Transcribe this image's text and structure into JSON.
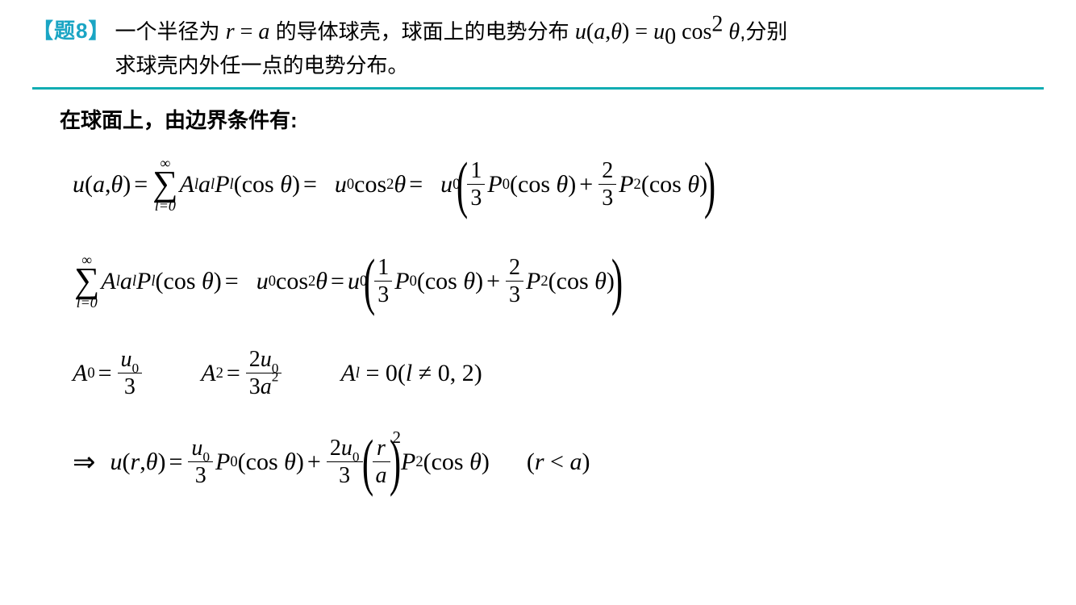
{
  "header": {
    "label": "【题8】",
    "line1_a": "一个半径为 ",
    "line1_r": "r",
    "line1_eq": " = ",
    "line1_a2": "a",
    "line1_b": " 的导体球壳，球面上的电势分布 ",
    "line1_u": "u",
    "line1_args": "(a,θ)",
    "line1_eq2": " = ",
    "line1_u0": "u",
    "line1_sub0": "0",
    "line1_cos": " cos",
    "line1_sup2": "2",
    "line1_theta": " θ",
    "line1_c": ",分别",
    "line2": "求球壳内外任一点的电势分布。"
  },
  "colors": {
    "label": "#1aa5c4",
    "rule": "#11adb2",
    "text": "#000000",
    "bg": "#ffffff"
  },
  "body": {
    "intro": "在球面上，由边界条件有:"
  },
  "eq1": {
    "lhs_u": "u",
    "lhs_args": "(a,θ)",
    "sum_top": "∞",
    "sum_bot": "l=0",
    "A": "A",
    "sub_l": "l",
    "a": "a",
    "sup_l": "l",
    "P": "P",
    "cos": "(cos θ)",
    "u0": "u",
    "zero": "0",
    "cos2": "cos",
    "two": "2",
    "theta": "θ",
    "f1n": "1",
    "f1d": "3",
    "P0": "P",
    "z0": "0",
    "f2n": "2",
    "f2d": "3",
    "P2": "P",
    "z2": "2"
  },
  "eq3": {
    "A0": "A",
    "z": "0",
    "eq": "=",
    "u": "u",
    "three": "3",
    "A2": "A",
    "two": "2",
    "num2": "2u",
    "a": "a",
    "Al": "A",
    "l": "l",
    "rest": "= 0(l ≠ 0, 2)"
  },
  "eq4": {
    "arrow": "⇒",
    "u": "u",
    "args": "(r,θ)",
    "u0": "u",
    "z": "0",
    "three": "3",
    "P0": "P",
    "cos": "(cos θ)",
    "two": "2",
    "twou": "2u",
    "r": "r",
    "a": "a",
    "P2": "P",
    "cond": "(r < a)"
  }
}
